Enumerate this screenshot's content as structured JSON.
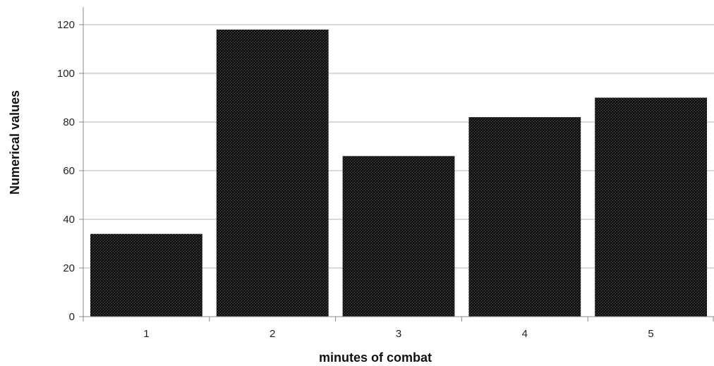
{
  "chart_data": {
    "type": "bar",
    "title": "",
    "xlabel": "minutes of combat",
    "ylabel": "Numerical values",
    "categories": [
      "1",
      "2",
      "3",
      "4",
      "5"
    ],
    "values": [
      34,
      118,
      66,
      82,
      90
    ],
    "ylim": [
      0,
      120
    ],
    "y_ticks": [
      0,
      20,
      40,
      60,
      80,
      100,
      120
    ],
    "grid": true,
    "legend": "none",
    "colors": {
      "bar": "#141414",
      "bar_texture": "#5a5a5a",
      "grid": "#b4b4b4",
      "axis": "#888888"
    }
  }
}
